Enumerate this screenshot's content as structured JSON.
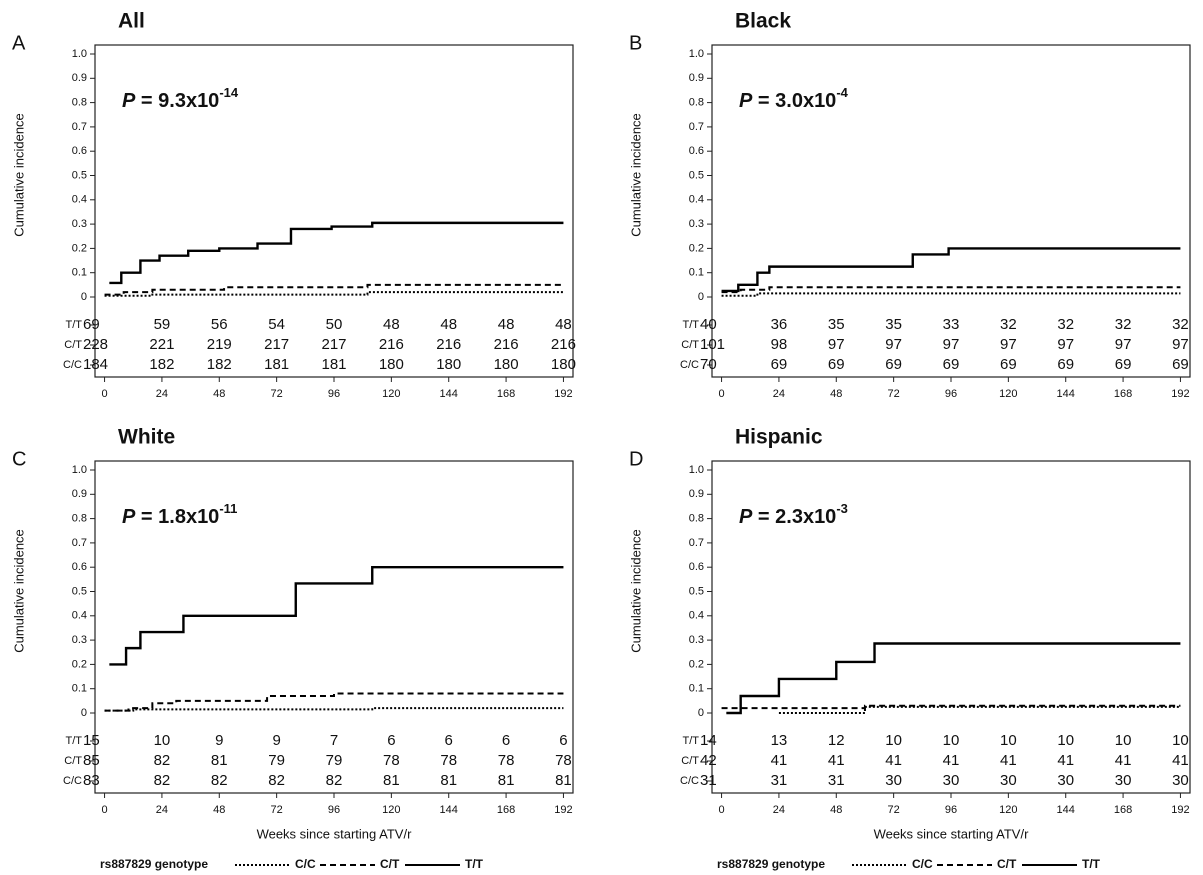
{
  "chart_data": [
    {
      "type": "line",
      "step": "post",
      "panel_label": "A",
      "title": "All",
      "p_value": {
        "label": "P",
        "text": " = 9.3x10",
        "exponent": "-14"
      },
      "ylabel": "Cumulative incidence",
      "xlim": [
        -4,
        196
      ],
      "ylim": [
        0,
        1
      ],
      "xticks": [
        0,
        24,
        48,
        72,
        96,
        120,
        144,
        168,
        192
      ],
      "yticks": [
        0,
        0.1,
        0.2,
        0.3,
        0.4,
        0.5,
        0.6,
        0.7,
        0.8,
        0.9,
        {
          "value": 1,
          "label": "1.0"
        }
      ],
      "series": [
        {
          "dash": "2,2",
          "color": "#000000",
          "x": [
            0,
            20,
            110,
            192
          ],
          "values": [
            0.005,
            0.01,
            0.02,
            0.02
          ]
        },
        {
          "dash": "6,4",
          "color": "#000000",
          "x": [
            0,
            8,
            20,
            50,
            110,
            192
          ],
          "values": [
            0.01,
            0.02,
            0.03,
            0.04,
            0.05,
            0.05
          ]
        },
        {
          "dash": "none",
          "color": "#000000",
          "x": [
            2,
            7,
            15,
            23,
            35,
            48,
            64,
            78,
            95,
            112,
            192
          ],
          "values": [
            0.058,
            0.1,
            0.15,
            0.17,
            0.19,
            0.2,
            0.22,
            0.28,
            0.29,
            0.305,
            0.305
          ]
        }
      ],
      "risk_table": {
        "rows": [
          "T/T",
          "C/T",
          "C/C"
        ],
        "values": [
          [
            69,
            59,
            56,
            54,
            50,
            48,
            48,
            48,
            48
          ],
          [
            228,
            221,
            219,
            217,
            217,
            216,
            216,
            216,
            216
          ],
          [
            184,
            182,
            182,
            181,
            181,
            180,
            180,
            180,
            180
          ]
        ]
      }
    },
    {
      "type": "line",
      "step": "post",
      "panel_label": "B",
      "title": "Black",
      "p_value": {
        "label": "P",
        "text": " = 3.0x10",
        "exponent": "-4"
      },
      "ylabel": "Cumulative incidence",
      "xlim": [
        -4,
        196
      ],
      "ylim": [
        0,
        1
      ],
      "xticks": [
        0,
        24,
        48,
        72,
        96,
        120,
        144,
        168,
        192
      ],
      "yticks": [
        0,
        0.1,
        0.2,
        0.3,
        0.4,
        0.5,
        0.6,
        0.7,
        0.8,
        0.9,
        {
          "value": 1,
          "label": "1.0"
        }
      ],
      "series": [
        {
          "dash": "2,2",
          "color": "#000000",
          "x": [
            0,
            15,
            192
          ],
          "values": [
            0.005,
            0.015,
            0.015
          ]
        },
        {
          "dash": "6,4",
          "color": "#000000",
          "x": [
            0,
            8,
            20,
            192
          ],
          "values": [
            0.02,
            0.03,
            0.04,
            0.04
          ]
        },
        {
          "dash": "none",
          "color": "#000000",
          "x": [
            0,
            7,
            15,
            20,
            80,
            95,
            192
          ],
          "values": [
            0.025,
            0.05,
            0.1,
            0.125,
            0.175,
            0.2,
            0.2
          ]
        }
      ],
      "risk_table": {
        "rows": [
          "T/T",
          "C/T",
          "C/C"
        ],
        "values": [
          [
            40,
            36,
            35,
            35,
            33,
            32,
            32,
            32,
            32
          ],
          [
            101,
            98,
            97,
            97,
            97,
            97,
            97,
            97,
            97
          ],
          [
            70,
            69,
            69,
            69,
            69,
            69,
            69,
            69,
            69
          ]
        ]
      }
    },
    {
      "type": "line",
      "step": "post",
      "panel_label": "C",
      "title": "White",
      "p_value": {
        "label": "P",
        "text": " = 1.8x10",
        "exponent": "-11"
      },
      "ylabel": "Cumulative incidence",
      "xlabel": "Weeks since starting ATV/r",
      "legend": true,
      "legend_title": "rs887829 genotype",
      "xlim": [
        -4,
        196
      ],
      "ylim": [
        0,
        1
      ],
      "xticks": [
        0,
        24,
        48,
        72,
        96,
        120,
        144,
        168,
        192
      ],
      "yticks": [
        0,
        0.1,
        0.2,
        0.3,
        0.4,
        0.5,
        0.6,
        0.7,
        0.8,
        0.9,
        {
          "value": 1,
          "label": "1.0"
        }
      ],
      "series": [
        {
          "name": "C/C",
          "dash": "2,2",
          "color": "#000000",
          "x": [
            0,
            12,
            112,
            192
          ],
          "values": [
            0.01,
            0.015,
            0.02,
            0.02
          ]
        },
        {
          "name": "C/T",
          "dash": "6,4",
          "color": "#000000",
          "x": [
            0,
            10,
            20,
            30,
            68,
            96,
            192
          ],
          "values": [
            0.01,
            0.02,
            0.04,
            0.05,
            0.07,
            0.08,
            0.08
          ]
        },
        {
          "name": "T/T",
          "dash": "none",
          "color": "#000000",
          "x": [
            2,
            9,
            15,
            33,
            80,
            112,
            192
          ],
          "values": [
            0.2,
            0.267,
            0.333,
            0.4,
            0.533,
            0.6,
            0.6
          ]
        }
      ],
      "risk_table": {
        "rows": [
          "T/T",
          "C/T",
          "C/C"
        ],
        "values": [
          [
            15,
            10,
            9,
            9,
            7,
            6,
            6,
            6,
            6
          ],
          [
            85,
            82,
            81,
            79,
            79,
            78,
            78,
            78,
            78
          ],
          [
            83,
            82,
            82,
            82,
            82,
            81,
            81,
            81,
            81
          ]
        ]
      }
    },
    {
      "type": "line",
      "step": "post",
      "panel_label": "D",
      "title": "Hispanic",
      "p_value": {
        "label": "P",
        "text": " = 2.3x10",
        "exponent": "-3"
      },
      "ylabel": "Cumulative incidence",
      "xlabel": "Weeks since starting ATV/r",
      "legend": true,
      "legend_title": "rs887829 genotype",
      "xlim": [
        -4,
        196
      ],
      "ylim": [
        0,
        1
      ],
      "xticks": [
        0,
        24,
        48,
        72,
        96,
        120,
        144,
        168,
        192
      ],
      "yticks": [
        0,
        0.1,
        0.2,
        0.3,
        0.4,
        0.5,
        0.6,
        0.7,
        0.8,
        0.9,
        {
          "value": 1,
          "label": "1.0"
        }
      ],
      "series": [
        {
          "name": "C/C",
          "dash": "2,2",
          "color": "#000000",
          "x": [
            24,
            60,
            192
          ],
          "values": [
            0,
            0.025,
            0.025
          ]
        },
        {
          "name": "C/T",
          "dash": "6,4",
          "color": "#000000",
          "x": [
            0,
            60,
            192
          ],
          "values": [
            0.02,
            0.03,
            0.03
          ]
        },
        {
          "name": "T/T",
          "dash": "none",
          "color": "#000000",
          "x": [
            2,
            8,
            24,
            48,
            64,
            192
          ],
          "values": [
            0,
            0.07,
            0.14,
            0.21,
            0.286,
            0.286
          ]
        }
      ],
      "risk_table": {
        "rows": [
          "T/T",
          "C/T",
          "C/C"
        ],
        "values": [
          [
            14,
            13,
            12,
            10,
            10,
            10,
            10,
            10,
            10
          ],
          [
            42,
            41,
            41,
            41,
            41,
            41,
            41,
            41,
            41
          ],
          [
            31,
            31,
            31,
            30,
            30,
            30,
            30,
            30,
            30
          ]
        ]
      }
    }
  ]
}
